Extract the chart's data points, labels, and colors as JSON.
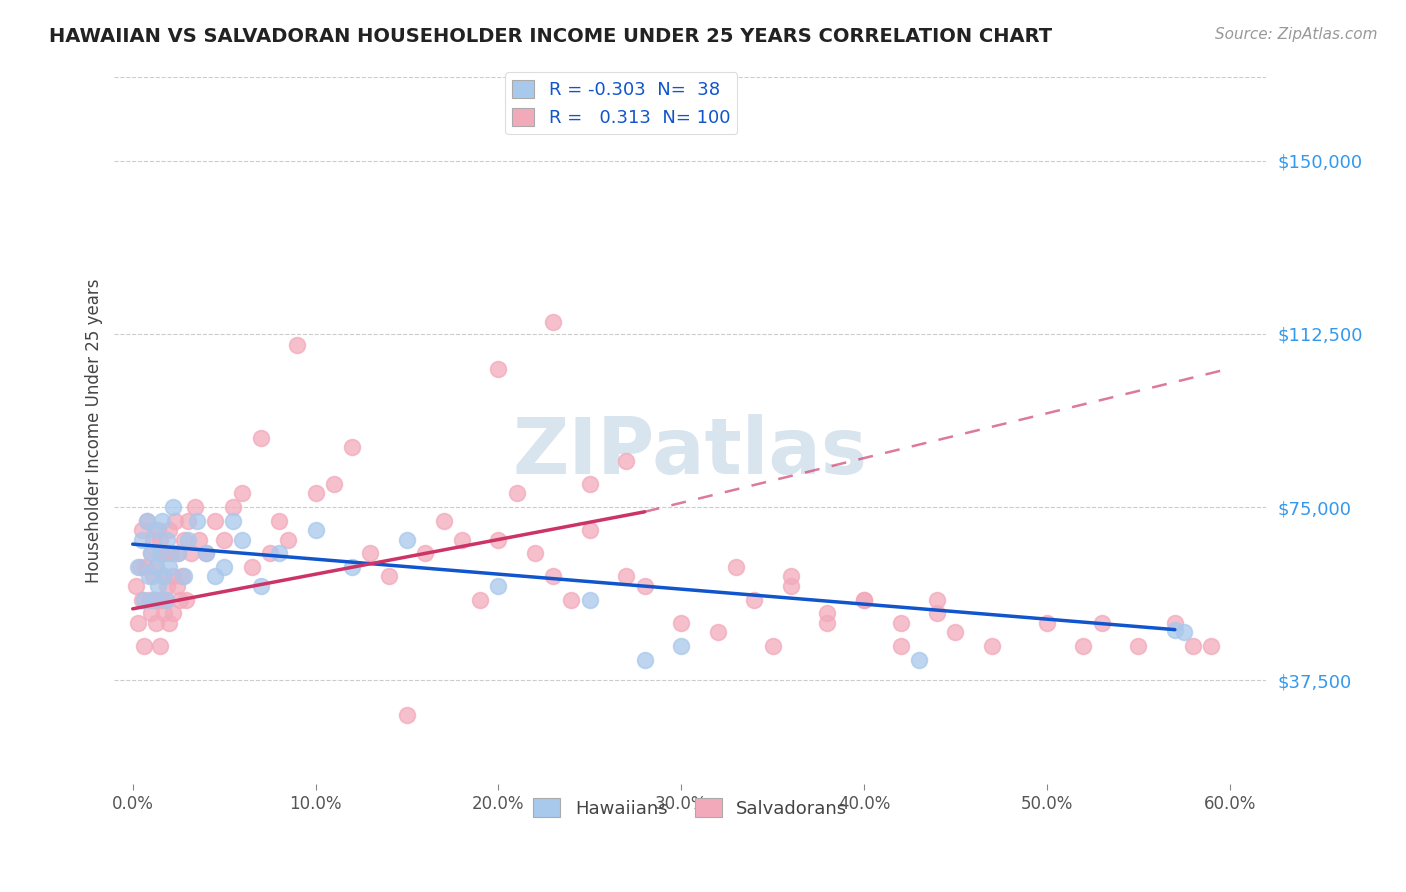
{
  "title": "HAWAIIAN VS SALVADORAN HOUSEHOLDER INCOME UNDER 25 YEARS CORRELATION CHART",
  "source": "Source: ZipAtlas.com",
  "ylabel": "Householder Income Under 25 years",
  "xlabel_ticks": [
    "0.0%",
    "10.0%",
    "20.0%",
    "30.0%",
    "40.0%",
    "50.0%",
    "60.0%"
  ],
  "xlabel_vals": [
    0,
    10,
    20,
    30,
    40,
    50,
    60
  ],
  "yticks": [
    37500,
    75000,
    112500,
    150000
  ],
  "ytick_labels": [
    "$37,500",
    "$75,000",
    "$112,500",
    "$150,000"
  ],
  "xlim": [
    -1,
    62
  ],
  "ylim": [
    15000,
    168000
  ],
  "hawaiian_R": "-0.303",
  "hawaiian_N": "38",
  "salvadoran_R": "0.313",
  "salvadoran_N": "100",
  "hawaiian_color": "#A8C8EC",
  "salvadoran_color": "#F2AABB",
  "hawaiian_line_color": "#1155CC",
  "salvadoran_line_color": "#CC3366",
  "watermark": "ZIPatlas",
  "hawaiian_line_x0": 0,
  "hawaiian_line_y0": 67000,
  "hawaiian_line_x1": 57,
  "hawaiian_line_y1": 48500,
  "salvadoran_line_x0": 0,
  "salvadoran_line_y0": 53000,
  "salvadoran_line_x1_solid": 28,
  "salvadoran_line_y1_solid": 74000,
  "salvadoran_line_x2": 60,
  "salvadoran_line_y2": 105000,
  "hawaiian_x": [
    0.3,
    0.5,
    0.6,
    0.8,
    0.9,
    1.0,
    1.1,
    1.2,
    1.3,
    1.4,
    1.5,
    1.6,
    1.7,
    1.8,
    1.9,
    2.0,
    2.2,
    2.5,
    2.8,
    3.0,
    3.5,
    4.0,
    4.5,
    5.0,
    5.5,
    6.0,
    7.0,
    8.0,
    10.0,
    12.0,
    15.0,
    20.0,
    25.0,
    28.0,
    30.0,
    43.0,
    57.0,
    57.5
  ],
  "hawaiian_y": [
    62000,
    68000,
    55000,
    72000,
    60000,
    65000,
    55000,
    70000,
    62000,
    58000,
    65000,
    72000,
    60000,
    55000,
    68000,
    62000,
    75000,
    65000,
    60000,
    68000,
    72000,
    65000,
    60000,
    62000,
    72000,
    68000,
    58000,
    65000,
    70000,
    62000,
    68000,
    58000,
    55000,
    42000,
    45000,
    42000,
    48500,
    48000
  ],
  "salvadoran_x": [
    0.2,
    0.3,
    0.4,
    0.5,
    0.5,
    0.6,
    0.7,
    0.8,
    0.9,
    1.0,
    1.0,
    1.1,
    1.1,
    1.2,
    1.3,
    1.3,
    1.4,
    1.4,
    1.5,
    1.5,
    1.6,
    1.6,
    1.7,
    1.7,
    1.8,
    1.8,
    1.9,
    2.0,
    2.0,
    2.1,
    2.2,
    2.2,
    2.3,
    2.4,
    2.5,
    2.6,
    2.7,
    2.8,
    2.9,
    3.0,
    3.2,
    3.4,
    3.6,
    4.0,
    4.5,
    5.0,
    5.5,
    6.0,
    6.5,
    7.0,
    7.5,
    8.0,
    8.5,
    9.0,
    10.0,
    11.0,
    12.0,
    13.0,
    14.0,
    15.0,
    16.0,
    17.0,
    18.0,
    19.0,
    20.0,
    21.0,
    22.0,
    23.0,
    24.0,
    25.0,
    27.0,
    28.0,
    30.0,
    32.0,
    35.0,
    36.0,
    38.0,
    40.0,
    42.0,
    44.0,
    45.0,
    47.0,
    50.0,
    52.0,
    53.0,
    55.0,
    57.0,
    58.0,
    59.0,
    20.0,
    23.0,
    25.0,
    27.0,
    33.0,
    34.0,
    36.0,
    38.0,
    40.0,
    42.0,
    44.0
  ],
  "salvadoran_y": [
    58000,
    50000,
    62000,
    55000,
    70000,
    45000,
    62000,
    72000,
    55000,
    65000,
    52000,
    60000,
    68000,
    55000,
    62000,
    50000,
    70000,
    55000,
    68000,
    45000,
    65000,
    55000,
    60000,
    52000,
    65000,
    55000,
    58000,
    70000,
    50000,
    65000,
    60000,
    52000,
    72000,
    58000,
    65000,
    55000,
    60000,
    68000,
    55000,
    72000,
    65000,
    75000,
    68000,
    65000,
    72000,
    68000,
    75000,
    78000,
    62000,
    90000,
    65000,
    72000,
    68000,
    110000,
    78000,
    80000,
    88000,
    65000,
    60000,
    30000,
    65000,
    72000,
    68000,
    55000,
    68000,
    78000,
    65000,
    60000,
    55000,
    70000,
    60000,
    58000,
    50000,
    48000,
    45000,
    58000,
    50000,
    55000,
    45000,
    55000,
    48000,
    45000,
    50000,
    45000,
    50000,
    45000,
    50000,
    45000,
    45000,
    105000,
    115000,
    80000,
    85000,
    62000,
    55000,
    60000,
    52000,
    55000,
    50000,
    52000
  ]
}
